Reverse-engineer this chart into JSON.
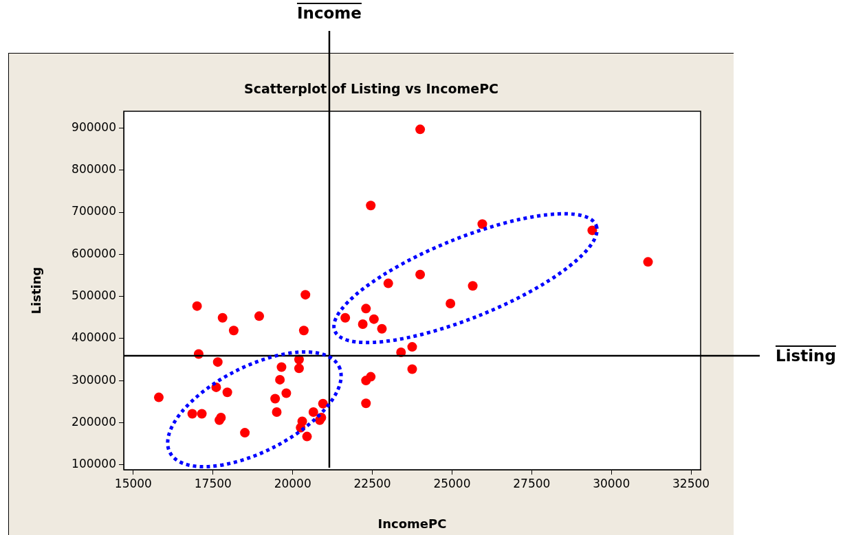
{
  "chart_data": {
    "type": "scatter",
    "title": "Scatterplot of Listing vs IncomePC",
    "xlabel": "IncomePC",
    "ylabel": "Listing",
    "xlim": [
      14700,
      32800
    ],
    "ylim": [
      88000,
      940000
    ],
    "xticks": [
      15000,
      17500,
      20000,
      22500,
      25000,
      27500,
      30000,
      32500
    ],
    "yticks": [
      100000,
      200000,
      300000,
      400000,
      500000,
      600000,
      700000,
      800000,
      900000
    ],
    "grid": false,
    "marker": "circle",
    "ref_lines": [
      {
        "axis": "x",
        "value": 21150,
        "label": "Income",
        "color": "#000000"
      },
      {
        "axis": "y",
        "value": 359000,
        "label": "Listing",
        "color": "#000000"
      }
    ],
    "series": [
      {
        "color": "#ff0000",
        "x": [
          15800,
          17000,
          17800,
          18950,
          18150,
          20400,
          20350,
          17050,
          17650,
          20200,
          20200,
          19650,
          19600,
          17600,
          17950,
          19800,
          19450,
          19500,
          16850,
          17150,
          17750,
          17700,
          18500,
          20950,
          20650,
          20900,
          20850,
          20300,
          20250,
          20450,
          21650,
          24000,
          22450,
          25950,
          24000,
          23000,
          25650,
          24950,
          22300,
          22550,
          22200,
          22800,
          23750,
          23400,
          23750,
          22450,
          22300,
          22300,
          29400,
          31150
        ],
        "values": [
          260000,
          477000,
          449000,
          453000,
          419000,
          504000,
          419000,
          363000,
          344000,
          350000,
          329000,
          332000,
          302000,
          284000,
          272000,
          270000,
          257000,
          225000,
          221000,
          221000,
          212000,
          206000,
          176000,
          245000,
          225000,
          212000,
          206000,
          203000,
          188000,
          167000,
          449000,
          897000,
          716000,
          672000,
          552000,
          531000,
          525000,
          483000,
          471000,
          446000,
          434000,
          423000,
          380000,
          367000,
          327000,
          309000,
          300000,
          246000,
          657000,
          582000
        ]
      }
    ]
  }
}
